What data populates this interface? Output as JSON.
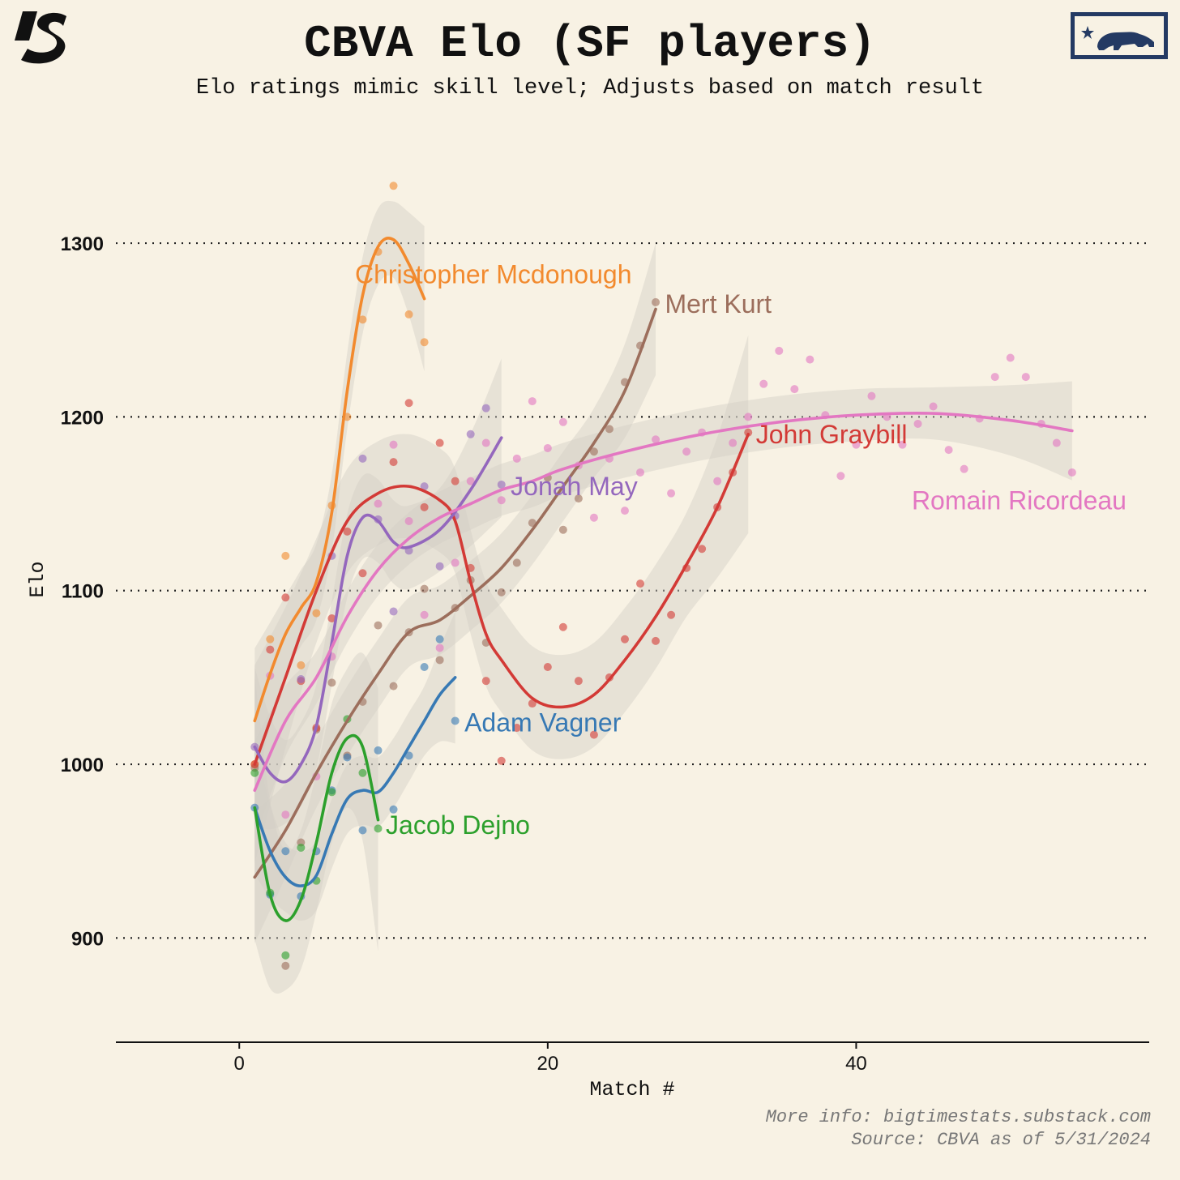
{
  "header": {
    "title": "CBVA Elo (SF players)",
    "subtitle": "Elo ratings mimic skill level; Adjusts based on match result"
  },
  "logos": {
    "left": "substack-s-logo-icon",
    "right": "california-bear-flag-icon"
  },
  "footer": {
    "line1": "More info: bigtimestats.substack.com",
    "line2": "Source: CBVA as of 5/31/2024"
  },
  "colors": {
    "background": "#f8f2e4",
    "band": "#d2cec6",
    "grid": "#222222",
    "flag_navy": "#243a63"
  },
  "chart_data": {
    "type": "scatter",
    "xlabel": "Match #",
    "ylabel": "Elo",
    "xlim": [
      -8,
      59
    ],
    "ylim": [
      840,
      1370
    ],
    "xticks": [
      0,
      20,
      40
    ],
    "yticks": [
      900,
      1000,
      1100,
      1200,
      1300
    ],
    "grid": "horizontal dotted",
    "smoothing": "loess with confidence band",
    "series": [
      {
        "name": "Christopher Mcdonough",
        "color": "#f28a2e",
        "points": [
          [
            1,
            1000
          ],
          [
            2,
            1072
          ],
          [
            3,
            1120
          ],
          [
            4,
            1057
          ],
          [
            5,
            1087
          ],
          [
            6,
            1149
          ],
          [
            7,
            1200
          ],
          [
            8,
            1256
          ],
          [
            9,
            1295
          ],
          [
            10,
            1333
          ],
          [
            11,
            1259
          ],
          [
            12,
            1243
          ]
        ],
        "smooth": [
          [
            1,
            1025
          ],
          [
            2,
            1052
          ],
          [
            3,
            1075
          ],
          [
            4,
            1090
          ],
          [
            5,
            1105
          ],
          [
            6,
            1145
          ],
          [
            7,
            1215
          ],
          [
            8,
            1270
          ],
          [
            9,
            1298
          ],
          [
            10,
            1302
          ],
          [
            11,
            1288
          ],
          [
            12,
            1268
          ]
        ],
        "band": 22
      },
      {
        "name": "Mert Kurt",
        "color": "#9c6e5c",
        "points": [
          [
            1,
            998
          ],
          [
            3,
            884
          ],
          [
            4,
            955
          ],
          [
            5,
            1020
          ],
          [
            6,
            1047
          ],
          [
            7,
            1005
          ],
          [
            8,
            1036
          ],
          [
            9,
            1080
          ],
          [
            10,
            1045
          ],
          [
            11,
            1076
          ],
          [
            12,
            1101
          ],
          [
            13,
            1060
          ],
          [
            14,
            1090
          ],
          [
            15,
            1106
          ],
          [
            16,
            1070
          ],
          [
            17,
            1099
          ],
          [
            18,
            1116
          ],
          [
            19,
            1139
          ],
          [
            20,
            1165
          ],
          [
            21,
            1135
          ],
          [
            22,
            1153
          ],
          [
            23,
            1180
          ],
          [
            24,
            1193
          ],
          [
            25,
            1220
          ],
          [
            26,
            1241
          ],
          [
            27,
            1266
          ]
        ],
        "smooth": [
          [
            1,
            935
          ],
          [
            3,
            962
          ],
          [
            5,
            995
          ],
          [
            7,
            1025
          ],
          [
            9,
            1052
          ],
          [
            11,
            1076
          ],
          [
            13,
            1083
          ],
          [
            15,
            1097
          ],
          [
            17,
            1113
          ],
          [
            19,
            1135
          ],
          [
            21,
            1160
          ],
          [
            23,
            1185
          ],
          [
            25,
            1215
          ],
          [
            27,
            1262
          ]
        ],
        "band": 20
      },
      {
        "name": "John Graybill",
        "color": "#d33a36",
        "points": [
          [
            1,
            1000
          ],
          [
            2,
            1066
          ],
          [
            3,
            1096
          ],
          [
            4,
            1048
          ],
          [
            5,
            1021
          ],
          [
            6,
            1084
          ],
          [
            7,
            1134
          ],
          [
            8,
            1110
          ],
          [
            10,
            1174
          ],
          [
            11,
            1208
          ],
          [
            12,
            1148
          ],
          [
            13,
            1185
          ],
          [
            14,
            1163
          ],
          [
            15,
            1113
          ],
          [
            16,
            1048
          ],
          [
            17,
            1002
          ],
          [
            18,
            1021
          ],
          [
            19,
            1035
          ],
          [
            20,
            1056
          ],
          [
            21,
            1079
          ],
          [
            22,
            1048
          ],
          [
            23,
            1017
          ],
          [
            24,
            1050
          ],
          [
            25,
            1072
          ],
          [
            26,
            1104
          ],
          [
            27,
            1071
          ],
          [
            28,
            1086
          ],
          [
            29,
            1113
          ],
          [
            30,
            1124
          ],
          [
            31,
            1148
          ],
          [
            32,
            1168
          ],
          [
            33,
            1191
          ]
        ],
        "smooth": [
          [
            1,
            1000
          ],
          [
            3,
            1050
          ],
          [
            5,
            1100
          ],
          [
            7,
            1140
          ],
          [
            9,
            1156
          ],
          [
            11,
            1160
          ],
          [
            13,
            1152
          ],
          [
            14,
            1140
          ],
          [
            15,
            1105
          ],
          [
            16,
            1075
          ],
          [
            17,
            1060
          ],
          [
            19,
            1038
          ],
          [
            21,
            1033
          ],
          [
            23,
            1040
          ],
          [
            25,
            1060
          ],
          [
            27,
            1085
          ],
          [
            29,
            1115
          ],
          [
            31,
            1148
          ],
          [
            33,
            1190
          ]
        ],
        "band": 30
      },
      {
        "name": "Jonah May",
        "color": "#9467bd",
        "points": [
          [
            1,
            1010
          ],
          [
            4,
            1049
          ],
          [
            6,
            1120
          ],
          [
            8,
            1176
          ],
          [
            9,
            1141
          ],
          [
            10,
            1088
          ],
          [
            11,
            1123
          ],
          [
            12,
            1160
          ],
          [
            13,
            1114
          ],
          [
            14,
            1143
          ],
          [
            15,
            1190
          ],
          [
            16,
            1205
          ],
          [
            17,
            1161
          ]
        ],
        "smooth": [
          [
            1,
            1010
          ],
          [
            2,
            995
          ],
          [
            3,
            990
          ],
          [
            4,
            1000
          ],
          [
            5,
            1022
          ],
          [
            6,
            1070
          ],
          [
            7,
            1120
          ],
          [
            8,
            1142
          ],
          [
            9,
            1140
          ],
          [
            10,
            1128
          ],
          [
            11,
            1125
          ],
          [
            13,
            1135
          ],
          [
            15,
            1158
          ],
          [
            17,
            1188
          ]
        ],
        "band": 24
      },
      {
        "name": "Romain Ricordeau",
        "color": "#e377c2",
        "points": [
          [
            2,
            1051
          ],
          [
            3,
            971
          ],
          [
            5,
            993
          ],
          [
            6,
            1062
          ],
          [
            9,
            1150
          ],
          [
            10,
            1184
          ],
          [
            11,
            1140
          ],
          [
            12,
            1086
          ],
          [
            13,
            1067
          ],
          [
            14,
            1116
          ],
          [
            15,
            1163
          ],
          [
            16,
            1185
          ],
          [
            17,
            1152
          ],
          [
            18,
            1176
          ],
          [
            19,
            1209
          ],
          [
            20,
            1182
          ],
          [
            21,
            1197
          ],
          [
            22,
            1172
          ],
          [
            23,
            1142
          ],
          [
            24,
            1176
          ],
          [
            25,
            1146
          ],
          [
            26,
            1168
          ],
          [
            27,
            1187
          ],
          [
            28,
            1156
          ],
          [
            29,
            1180
          ],
          [
            30,
            1191
          ],
          [
            31,
            1163
          ],
          [
            32,
            1185
          ],
          [
            33,
            1200
          ],
          [
            34,
            1219
          ],
          [
            35,
            1238
          ],
          [
            36,
            1216
          ],
          [
            37,
            1233
          ],
          [
            38,
            1201
          ],
          [
            39,
            1166
          ],
          [
            40,
            1184
          ],
          [
            41,
            1212
          ],
          [
            42,
            1200
          ],
          [
            43,
            1184
          ],
          [
            44,
            1196
          ],
          [
            45,
            1206
          ],
          [
            46,
            1181
          ],
          [
            47,
            1170
          ],
          [
            48,
            1199
          ],
          [
            49,
            1223
          ],
          [
            50,
            1234
          ],
          [
            51,
            1223
          ],
          [
            52,
            1196
          ],
          [
            53,
            1185
          ],
          [
            54,
            1168
          ]
        ],
        "smooth": [
          [
            1,
            985
          ],
          [
            3,
            1025
          ],
          [
            5,
            1050
          ],
          [
            7,
            1085
          ],
          [
            9,
            1112
          ],
          [
            11,
            1130
          ],
          [
            13,
            1142
          ],
          [
            15,
            1150
          ],
          [
            17,
            1158
          ],
          [
            19,
            1163
          ],
          [
            21,
            1170
          ],
          [
            25,
            1180
          ],
          [
            30,
            1190
          ],
          [
            35,
            1197
          ],
          [
            40,
            1201
          ],
          [
            45,
            1202
          ],
          [
            50,
            1198
          ],
          [
            54,
            1192
          ]
        ],
        "band": 15
      },
      {
        "name": "Adam Vagner",
        "color": "#3779b4",
        "points": [
          [
            1,
            975
          ],
          [
            2,
            925
          ],
          [
            3,
            950
          ],
          [
            4,
            924
          ],
          [
            5,
            950
          ],
          [
            6,
            985
          ],
          [
            7,
            1004
          ],
          [
            8,
            962
          ],
          [
            9,
            1008
          ],
          [
            10,
            974
          ],
          [
            11,
            1005
          ],
          [
            12,
            1056
          ],
          [
            13,
            1072
          ],
          [
            14,
            1025
          ]
        ],
        "smooth": [
          [
            1,
            975
          ],
          [
            2,
            950
          ],
          [
            3,
            935
          ],
          [
            4,
            930
          ],
          [
            5,
            936
          ],
          [
            6,
            960
          ],
          [
            7,
            980
          ],
          [
            8,
            985
          ],
          [
            9,
            984
          ],
          [
            10,
            995
          ],
          [
            11,
            1010
          ],
          [
            12,
            1025
          ],
          [
            13,
            1040
          ],
          [
            14,
            1050
          ]
        ],
        "band": 20
      },
      {
        "name": "Jacob Dejno",
        "color": "#2ca02c",
        "points": [
          [
            1,
            995
          ],
          [
            2,
            926
          ],
          [
            3,
            890
          ],
          [
            4,
            952
          ],
          [
            5,
            933
          ],
          [
            6,
            984
          ],
          [
            7,
            1026
          ],
          [
            8,
            995
          ],
          [
            9,
            963
          ]
        ],
        "smooth": [
          [
            1,
            975
          ],
          [
            2,
            925
          ],
          [
            3,
            910
          ],
          [
            4,
            922
          ],
          [
            5,
            955
          ],
          [
            6,
            995
          ],
          [
            7,
            1015
          ],
          [
            8,
            1010
          ],
          [
            9,
            968
          ]
        ],
        "band": 40
      }
    ],
    "series_labels": [
      {
        "name": "Christopher Mcdonough",
        "text": "Christopher Mcdonough",
        "x": 7.5,
        "y": 1282,
        "color": "#f28a2e"
      },
      {
        "name": "Mert Kurt",
        "text": "Mert Kurt",
        "x": 27.6,
        "y": 1265,
        "color": "#9c6e5c"
      },
      {
        "name": "John Graybill",
        "text": "John Graybill",
        "x": 33.5,
        "y": 1190,
        "color": "#d33a36"
      },
      {
        "name": "Jonah May",
        "text": "Jonah May",
        "x": 17.6,
        "y": 1160,
        "color": "#9467bd"
      },
      {
        "name": "Romain Ricordeau",
        "text": "Romain Ricordeau",
        "x": 43.6,
        "y": 1152,
        "color": "#e377c2"
      },
      {
        "name": "Adam Vagner",
        "text": "Adam Vagner",
        "x": 14.6,
        "y": 1024,
        "color": "#3779b4"
      },
      {
        "name": "Jacob Dejno",
        "text": "Jacob Dejno",
        "x": 9.5,
        "y": 965,
        "color": "#2ca02c"
      }
    ]
  }
}
